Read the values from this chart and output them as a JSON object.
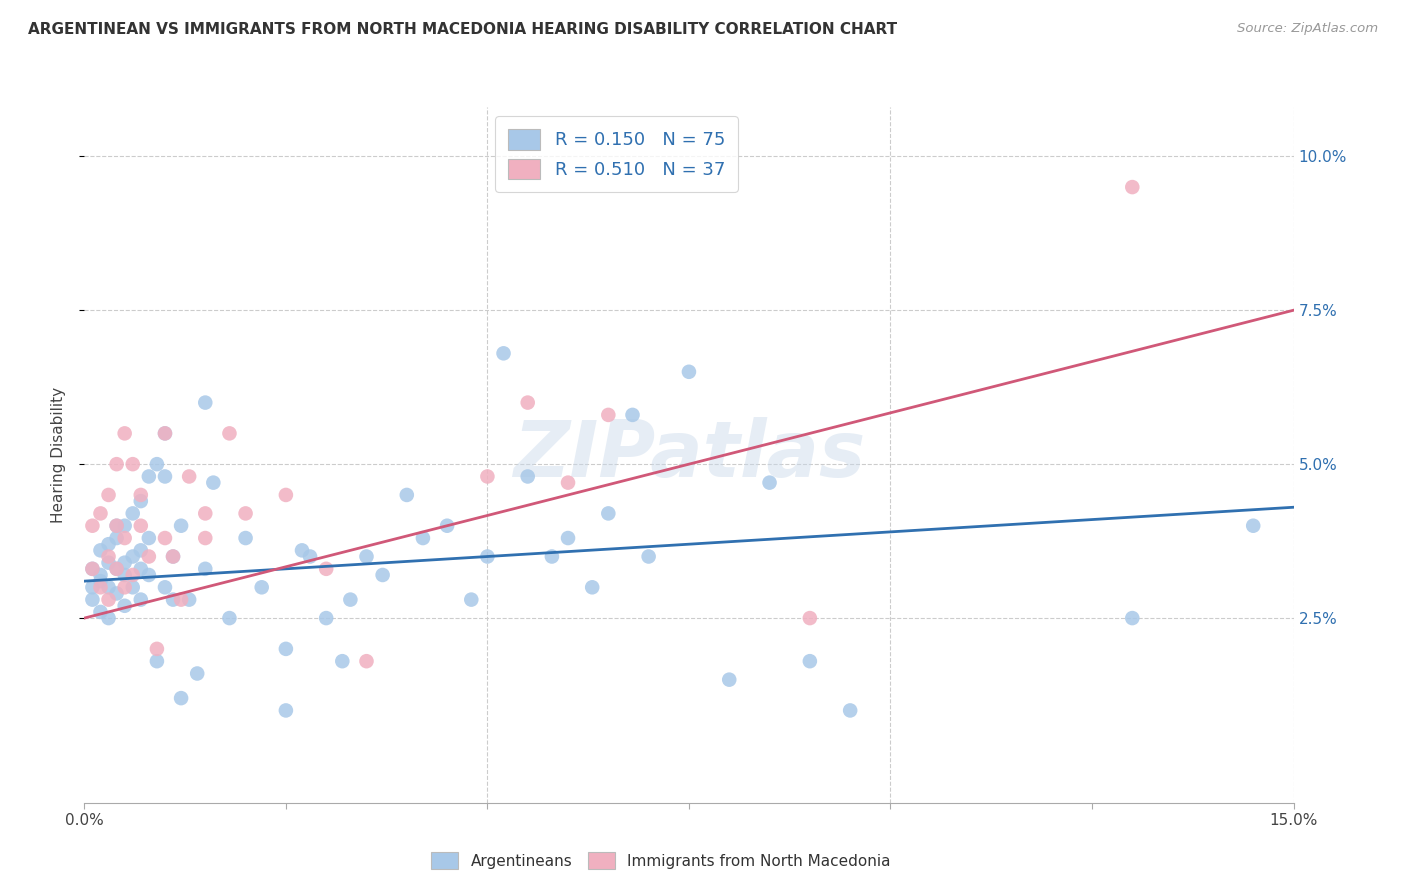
{
  "title": "ARGENTINEAN VS IMMIGRANTS FROM NORTH MACEDONIA HEARING DISABILITY CORRELATION CHART",
  "source": "Source: ZipAtlas.com",
  "ylabel": "Hearing Disability",
  "xlim": [
    0.0,
    0.15
  ],
  "ylim": [
    -0.005,
    0.108
  ],
  "yticks": [
    0.025,
    0.05,
    0.075,
    0.1
  ],
  "yticklabels": [
    "2.5%",
    "5.0%",
    "7.5%",
    "10.0%"
  ],
  "xticks": [
    0.0,
    0.025,
    0.05,
    0.075,
    0.1,
    0.125,
    0.15
  ],
  "xticklabels": [
    "0.0%",
    "",
    "",
    "",
    "",
    "",
    "15.0%"
  ],
  "blue_color": "#a8c8e8",
  "pink_color": "#f0b0c0",
  "blue_line_color": "#3070b0",
  "pink_line_color": "#d05878",
  "background_color": "#ffffff",
  "grid_color": "#cccccc",
  "legend_R1": "R = 0.150",
  "legend_N1": "N = 75",
  "legend_R2": "R = 0.510",
  "legend_N2": "N = 37",
  "watermark": "ZIPatlas",
  "blue_scatter_x": [
    0.001,
    0.001,
    0.001,
    0.002,
    0.002,
    0.002,
    0.002,
    0.003,
    0.003,
    0.003,
    0.003,
    0.004,
    0.004,
    0.004,
    0.004,
    0.005,
    0.005,
    0.005,
    0.005,
    0.006,
    0.006,
    0.006,
    0.007,
    0.007,
    0.007,
    0.007,
    0.008,
    0.008,
    0.008,
    0.009,
    0.009,
    0.01,
    0.01,
    0.01,
    0.011,
    0.011,
    0.012,
    0.012,
    0.013,
    0.014,
    0.015,
    0.015,
    0.016,
    0.018,
    0.02,
    0.022,
    0.025,
    0.025,
    0.027,
    0.028,
    0.03,
    0.032,
    0.033,
    0.035,
    0.037,
    0.04,
    0.042,
    0.045,
    0.048,
    0.05,
    0.052,
    0.055,
    0.058,
    0.06,
    0.063,
    0.065,
    0.068,
    0.07,
    0.075,
    0.08,
    0.085,
    0.09,
    0.095,
    0.13,
    0.145
  ],
  "blue_scatter_y": [
    0.033,
    0.03,
    0.028,
    0.032,
    0.036,
    0.031,
    0.026,
    0.034,
    0.03,
    0.037,
    0.025,
    0.033,
    0.038,
    0.029,
    0.04,
    0.027,
    0.034,
    0.04,
    0.032,
    0.03,
    0.042,
    0.035,
    0.028,
    0.036,
    0.044,
    0.033,
    0.032,
    0.038,
    0.048,
    0.018,
    0.05,
    0.03,
    0.048,
    0.055,
    0.028,
    0.035,
    0.012,
    0.04,
    0.028,
    0.016,
    0.06,
    0.033,
    0.047,
    0.025,
    0.038,
    0.03,
    0.01,
    0.02,
    0.036,
    0.035,
    0.025,
    0.018,
    0.028,
    0.035,
    0.032,
    0.045,
    0.038,
    0.04,
    0.028,
    0.035,
    0.068,
    0.048,
    0.035,
    0.038,
    0.03,
    0.042,
    0.058,
    0.035,
    0.065,
    0.015,
    0.047,
    0.018,
    0.01,
    0.025,
    0.04
  ],
  "pink_scatter_x": [
    0.001,
    0.001,
    0.002,
    0.002,
    0.003,
    0.003,
    0.003,
    0.004,
    0.004,
    0.004,
    0.005,
    0.005,
    0.005,
    0.006,
    0.006,
    0.007,
    0.007,
    0.008,
    0.009,
    0.01,
    0.01,
    0.011,
    0.012,
    0.013,
    0.015,
    0.015,
    0.018,
    0.02,
    0.025,
    0.03,
    0.035,
    0.05,
    0.055,
    0.06,
    0.065,
    0.09,
    0.13
  ],
  "pink_scatter_y": [
    0.033,
    0.04,
    0.03,
    0.042,
    0.028,
    0.045,
    0.035,
    0.04,
    0.033,
    0.05,
    0.038,
    0.03,
    0.055,
    0.032,
    0.05,
    0.04,
    0.045,
    0.035,
    0.02,
    0.038,
    0.055,
    0.035,
    0.028,
    0.048,
    0.042,
    0.038,
    0.055,
    0.042,
    0.045,
    0.033,
    0.018,
    0.048,
    0.06,
    0.047,
    0.058,
    0.025,
    0.095
  ],
  "blue_trend_x": [
    0.0,
    0.15
  ],
  "blue_trend_y": [
    0.031,
    0.043
  ],
  "pink_trend_x": [
    0.0,
    0.15
  ],
  "pink_trend_y": [
    0.025,
    0.075
  ]
}
